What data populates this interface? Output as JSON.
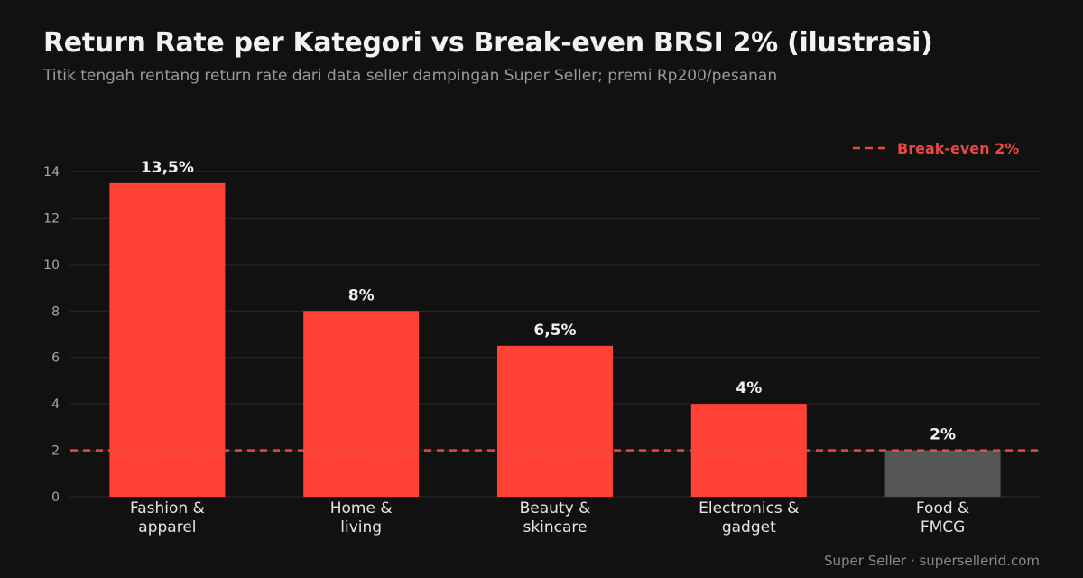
{
  "title": "Return Rate per Kategori vs Break-even BRSI 2% (ilustrasi)",
  "subtitle": "Titik tengah rentang return rate dari data seller dampingan Super Seller; premi Rp200/pesanan",
  "footer": "Super Seller · supersellerid.com",
  "colors": {
    "above_breakeven": "#ff4136",
    "at_or_below_breakeven": "#555555",
    "breakeven_line": "#e84a43",
    "grid": "#2a2a2a",
    "background": "#111111"
  },
  "chart_data": {
    "type": "bar",
    "categories": [
      [
        "Fashion &",
        "apparel"
      ],
      [
        "Home &",
        "living"
      ],
      [
        "Beauty &",
        "skincare"
      ],
      [
        "Electronics &",
        "gadget"
      ],
      [
        "Food &",
        "FMCG"
      ]
    ],
    "values": [
      13.5,
      8,
      6.5,
      4,
      2
    ],
    "data_labels": [
      "13,5%",
      "8%",
      "6,5%",
      "4%",
      "2%"
    ],
    "ylim": [
      0,
      14
    ],
    "yticks": [
      0,
      2,
      4,
      6,
      8,
      10,
      12,
      14
    ],
    "grid": true,
    "reference_line": {
      "value": 2,
      "label": "Break-even 2%",
      "style": "dashed"
    },
    "legend_position": "top-right",
    "xlabel": "",
    "ylabel": ""
  }
}
